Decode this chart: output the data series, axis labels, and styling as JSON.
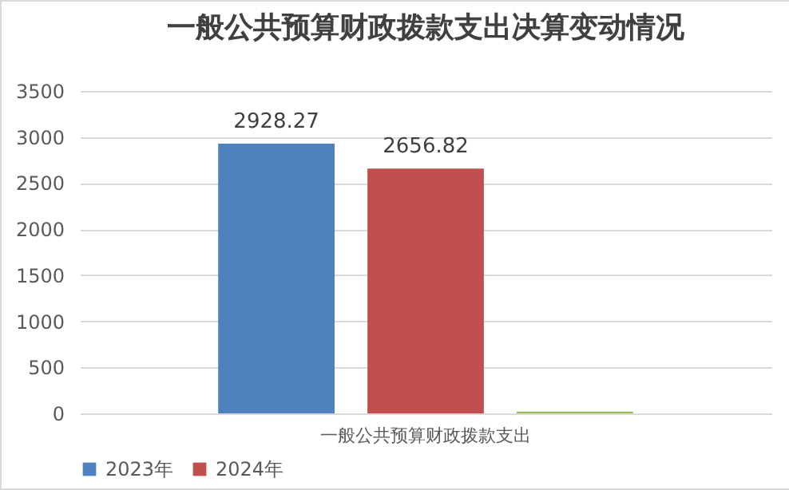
{
  "chart_data": {
    "type": "bar",
    "title": "一般公共预算财政拨款支出决算变动情况",
    "categories": [
      "一般公共预算财政拨款支出"
    ],
    "series": [
      {
        "name": "2023年",
        "color": "#4f81bd",
        "values": [
          2928.27
        ],
        "value_labels": [
          "2928.27"
        ]
      },
      {
        "name": "2024年",
        "color": "#c0504d",
        "values": [
          2656.82
        ],
        "value_labels": [
          "2656.82"
        ]
      },
      {
        "color": "#9bbb59",
        "values": [
          20
        ]
      }
    ],
    "ylim": [
      0,
      3500
    ],
    "yticks": [
      0,
      500,
      1000,
      1500,
      2000,
      2500,
      3000,
      3500
    ],
    "grid": "y",
    "legend": "bottom"
  }
}
